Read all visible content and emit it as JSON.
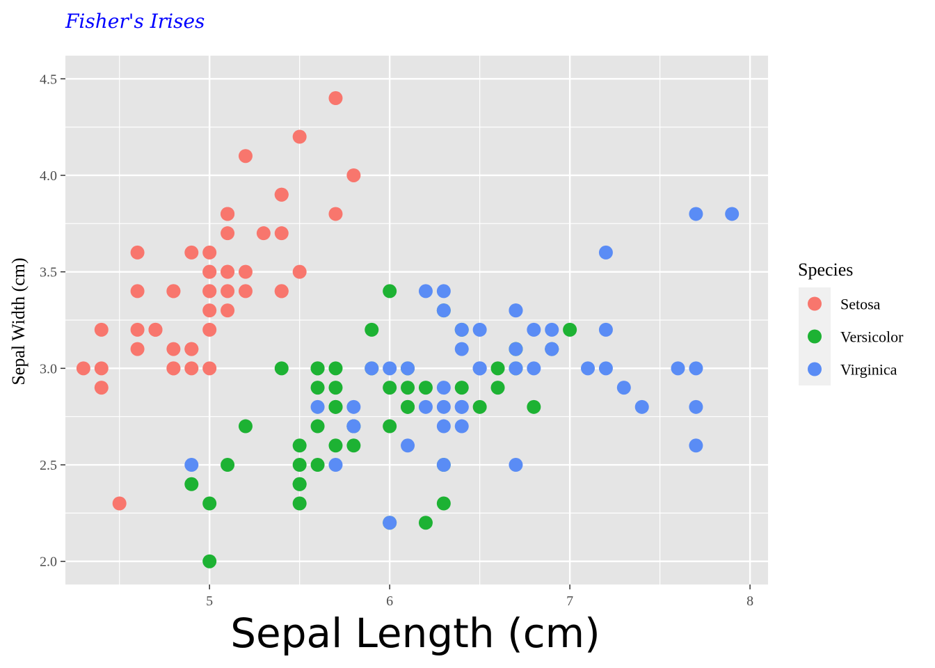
{
  "chart_data": {
    "type": "scatter",
    "title": "Fisher's Irises",
    "xlabel": "Sepal Length (cm)",
    "ylabel": "Sepal Width (cm)",
    "xlim": [
      4.2,
      8.1
    ],
    "ylim": [
      1.88,
      4.62
    ],
    "x_ticks": [
      5,
      6,
      7,
      8
    ],
    "y_ticks": [
      2.0,
      2.5,
      3.0,
      3.5,
      4.0,
      4.5
    ],
    "x_tick_labels": [
      "5",
      "6",
      "7",
      "8"
    ],
    "y_tick_labels": [
      "2.0",
      "2.5",
      "3.0",
      "3.5",
      "4.0",
      "4.5"
    ],
    "grid": true,
    "legend": {
      "title": "Species",
      "position": "right"
    },
    "series": [
      {
        "name": "Setosa",
        "color": "#F8766D",
        "points": [
          [
            5.1,
            3.5
          ],
          [
            4.9,
            3.0
          ],
          [
            4.7,
            3.2
          ],
          [
            4.6,
            3.1
          ],
          [
            5.0,
            3.6
          ],
          [
            5.4,
            3.9
          ],
          [
            4.6,
            3.4
          ],
          [
            5.0,
            3.4
          ],
          [
            4.4,
            2.9
          ],
          [
            4.9,
            3.1
          ],
          [
            5.4,
            3.7
          ],
          [
            4.8,
            3.4
          ],
          [
            4.8,
            3.0
          ],
          [
            4.3,
            3.0
          ],
          [
            5.8,
            4.0
          ],
          [
            5.7,
            4.4
          ],
          [
            5.4,
            3.9
          ],
          [
            5.1,
            3.5
          ],
          [
            5.7,
            3.8
          ],
          [
            5.1,
            3.8
          ],
          [
            5.4,
            3.4
          ],
          [
            5.1,
            3.7
          ],
          [
            4.6,
            3.6
          ],
          [
            5.1,
            3.3
          ],
          [
            4.8,
            3.4
          ],
          [
            5.0,
            3.0
          ],
          [
            5.0,
            3.4
          ],
          [
            5.2,
            3.5
          ],
          [
            5.2,
            3.4
          ],
          [
            4.7,
            3.2
          ],
          [
            4.8,
            3.1
          ],
          [
            5.4,
            3.4
          ],
          [
            5.2,
            4.1
          ],
          [
            5.5,
            4.2
          ],
          [
            4.9,
            3.1
          ],
          [
            5.0,
            3.2
          ],
          [
            5.5,
            3.5
          ],
          [
            4.9,
            3.6
          ],
          [
            4.4,
            3.0
          ],
          [
            5.1,
            3.4
          ],
          [
            5.0,
            3.5
          ],
          [
            4.5,
            2.3
          ],
          [
            4.4,
            3.2
          ],
          [
            5.0,
            3.5
          ],
          [
            5.1,
            3.8
          ],
          [
            4.8,
            3.0
          ],
          [
            5.1,
            3.8
          ],
          [
            4.6,
            3.2
          ],
          [
            5.3,
            3.7
          ],
          [
            5.0,
            3.3
          ]
        ]
      },
      {
        "name": "Versicolor",
        "color": "#1DB233",
        "points": [
          [
            7.0,
            3.2
          ],
          [
            6.4,
            3.2
          ],
          [
            6.9,
            3.1
          ],
          [
            5.5,
            2.3
          ],
          [
            6.5,
            2.8
          ],
          [
            5.7,
            2.8
          ],
          [
            6.3,
            3.3
          ],
          [
            4.9,
            2.4
          ],
          [
            6.6,
            2.9
          ],
          [
            5.2,
            2.7
          ],
          [
            5.0,
            2.0
          ],
          [
            5.9,
            3.0
          ],
          [
            6.0,
            2.2
          ],
          [
            6.1,
            2.9
          ],
          [
            5.6,
            2.9
          ],
          [
            6.7,
            3.1
          ],
          [
            5.6,
            3.0
          ],
          [
            5.8,
            2.7
          ],
          [
            6.2,
            2.2
          ],
          [
            5.6,
            2.5
          ],
          [
            5.9,
            3.2
          ],
          [
            6.1,
            2.8
          ],
          [
            6.3,
            2.5
          ],
          [
            6.1,
            2.8
          ],
          [
            6.4,
            2.9
          ],
          [
            6.6,
            3.0
          ],
          [
            6.8,
            2.8
          ],
          [
            6.7,
            3.0
          ],
          [
            6.0,
            2.9
          ],
          [
            5.7,
            2.6
          ],
          [
            5.5,
            2.4
          ],
          [
            5.5,
            2.4
          ],
          [
            5.8,
            2.7
          ],
          [
            6.0,
            2.7
          ],
          [
            5.4,
            3.0
          ],
          [
            6.0,
            3.4
          ],
          [
            6.7,
            3.1
          ],
          [
            6.3,
            2.3
          ],
          [
            5.6,
            3.0
          ],
          [
            5.5,
            2.5
          ],
          [
            5.5,
            2.6
          ],
          [
            6.1,
            3.0
          ],
          [
            5.8,
            2.6
          ],
          [
            5.0,
            2.3
          ],
          [
            5.6,
            2.7
          ],
          [
            5.7,
            3.0
          ],
          [
            5.7,
            2.9
          ],
          [
            6.2,
            2.9
          ],
          [
            5.1,
            2.5
          ],
          [
            5.7,
            2.8
          ]
        ]
      },
      {
        "name": "Virginica",
        "color": "#5A8CF5",
        "points": [
          [
            6.3,
            3.3
          ],
          [
            5.8,
            2.7
          ],
          [
            7.1,
            3.0
          ],
          [
            6.3,
            2.9
          ],
          [
            6.5,
            3.0
          ],
          [
            7.6,
            3.0
          ],
          [
            4.9,
            2.5
          ],
          [
            7.3,
            2.9
          ],
          [
            6.7,
            2.5
          ],
          [
            7.2,
            3.6
          ],
          [
            6.5,
            3.2
          ],
          [
            6.4,
            2.7
          ],
          [
            6.8,
            3.0
          ],
          [
            5.7,
            2.5
          ],
          [
            5.8,
            2.8
          ],
          [
            6.4,
            3.2
          ],
          [
            6.5,
            3.0
          ],
          [
            7.7,
            3.8
          ],
          [
            7.7,
            2.6
          ],
          [
            6.0,
            2.2
          ],
          [
            6.9,
            3.2
          ],
          [
            5.6,
            2.8
          ],
          [
            7.7,
            2.8
          ],
          [
            6.3,
            2.7
          ],
          [
            6.7,
            3.3
          ],
          [
            7.2,
            3.2
          ],
          [
            6.2,
            2.8
          ],
          [
            6.1,
            3.0
          ],
          [
            6.4,
            2.8
          ],
          [
            7.2,
            3.0
          ],
          [
            7.4,
            2.8
          ],
          [
            7.9,
            3.8
          ],
          [
            6.4,
            2.8
          ],
          [
            6.3,
            2.8
          ],
          [
            6.1,
            2.6
          ],
          [
            7.7,
            3.0
          ],
          [
            6.3,
            3.4
          ],
          [
            6.4,
            3.1
          ],
          [
            6.0,
            3.0
          ],
          [
            6.9,
            3.1
          ],
          [
            6.7,
            3.1
          ],
          [
            6.9,
            3.1
          ],
          [
            5.8,
            2.7
          ],
          [
            6.8,
            3.2
          ],
          [
            6.7,
            3.3
          ],
          [
            6.7,
            3.0
          ],
          [
            6.3,
            2.5
          ],
          [
            6.5,
            3.0
          ],
          [
            6.2,
            3.4
          ],
          [
            5.9,
            3.0
          ]
        ]
      }
    ],
    "colors": {
      "panel_bg": "#E5E5E5",
      "grid_line": "#FFFFFF",
      "title": "#0000FF",
      "tick_text": "#4D4D4D",
      "axis_title": "#000000",
      "legend_key_bg": "#F0F0F0"
    }
  }
}
